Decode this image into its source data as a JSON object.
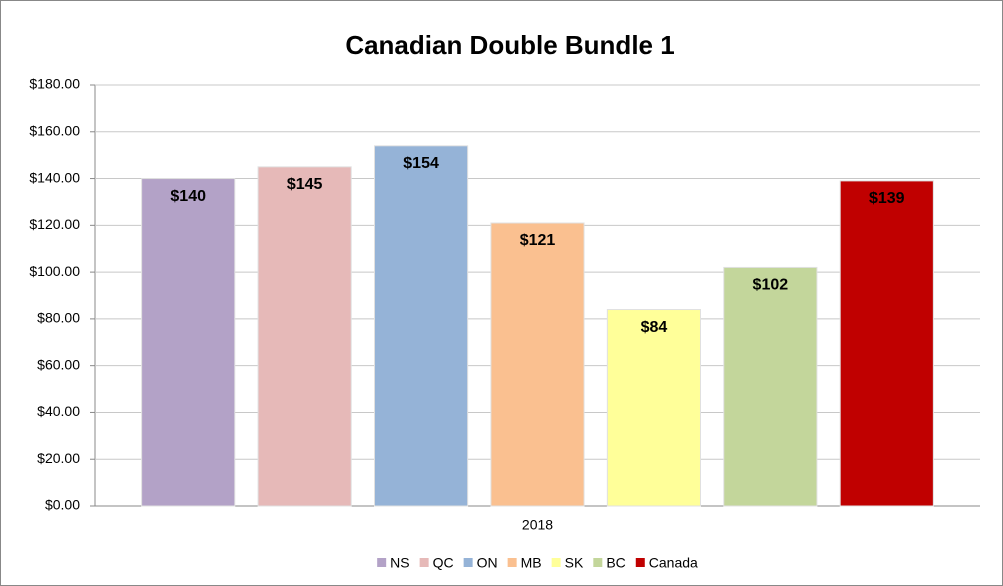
{
  "chart_data": {
    "type": "bar",
    "title": "Canadian Double Bundle 1",
    "categories": [
      "2018"
    ],
    "series": [
      {
        "name": "NS",
        "color": "#b3a2c7",
        "values": [
          140
        ],
        "value_labels": [
          "$140"
        ]
      },
      {
        "name": "QC",
        "color": "#e6b9b8",
        "values": [
          145
        ],
        "value_labels": [
          "$145"
        ]
      },
      {
        "name": "ON",
        "color": "#95b3d7",
        "values": [
          154
        ],
        "value_labels": [
          "$154"
        ]
      },
      {
        "name": "MB",
        "color": "#fac090",
        "values": [
          121
        ],
        "value_labels": [
          "$121"
        ]
      },
      {
        "name": "SK",
        "color": "#ffff99",
        "values": [
          84
        ],
        "value_labels": [
          "$84"
        ]
      },
      {
        "name": "BC",
        "color": "#c3d69b",
        "values": [
          102
        ],
        "value_labels": [
          "$102"
        ]
      },
      {
        "name": "Canada",
        "color": "#c00000",
        "values": [
          139
        ],
        "value_labels": [
          "$139"
        ]
      }
    ],
    "ylim": [
      0,
      180
    ],
    "yticks": [
      {
        "value": 0,
        "label": "$0.00"
      },
      {
        "value": 20,
        "label": "$20.00"
      },
      {
        "value": 40,
        "label": "$40.00"
      },
      {
        "value": 60,
        "label": "$60.00"
      },
      {
        "value": 80,
        "label": "$80.00"
      },
      {
        "value": 100,
        "label": "$100.00"
      },
      {
        "value": 120,
        "label": "$120.00"
      },
      {
        "value": 140,
        "label": "$140.00"
      },
      {
        "value": 160,
        "label": "$160.00"
      },
      {
        "value": 180,
        "label": "$180.00"
      }
    ],
    "grid": true,
    "legend": "bottom"
  }
}
